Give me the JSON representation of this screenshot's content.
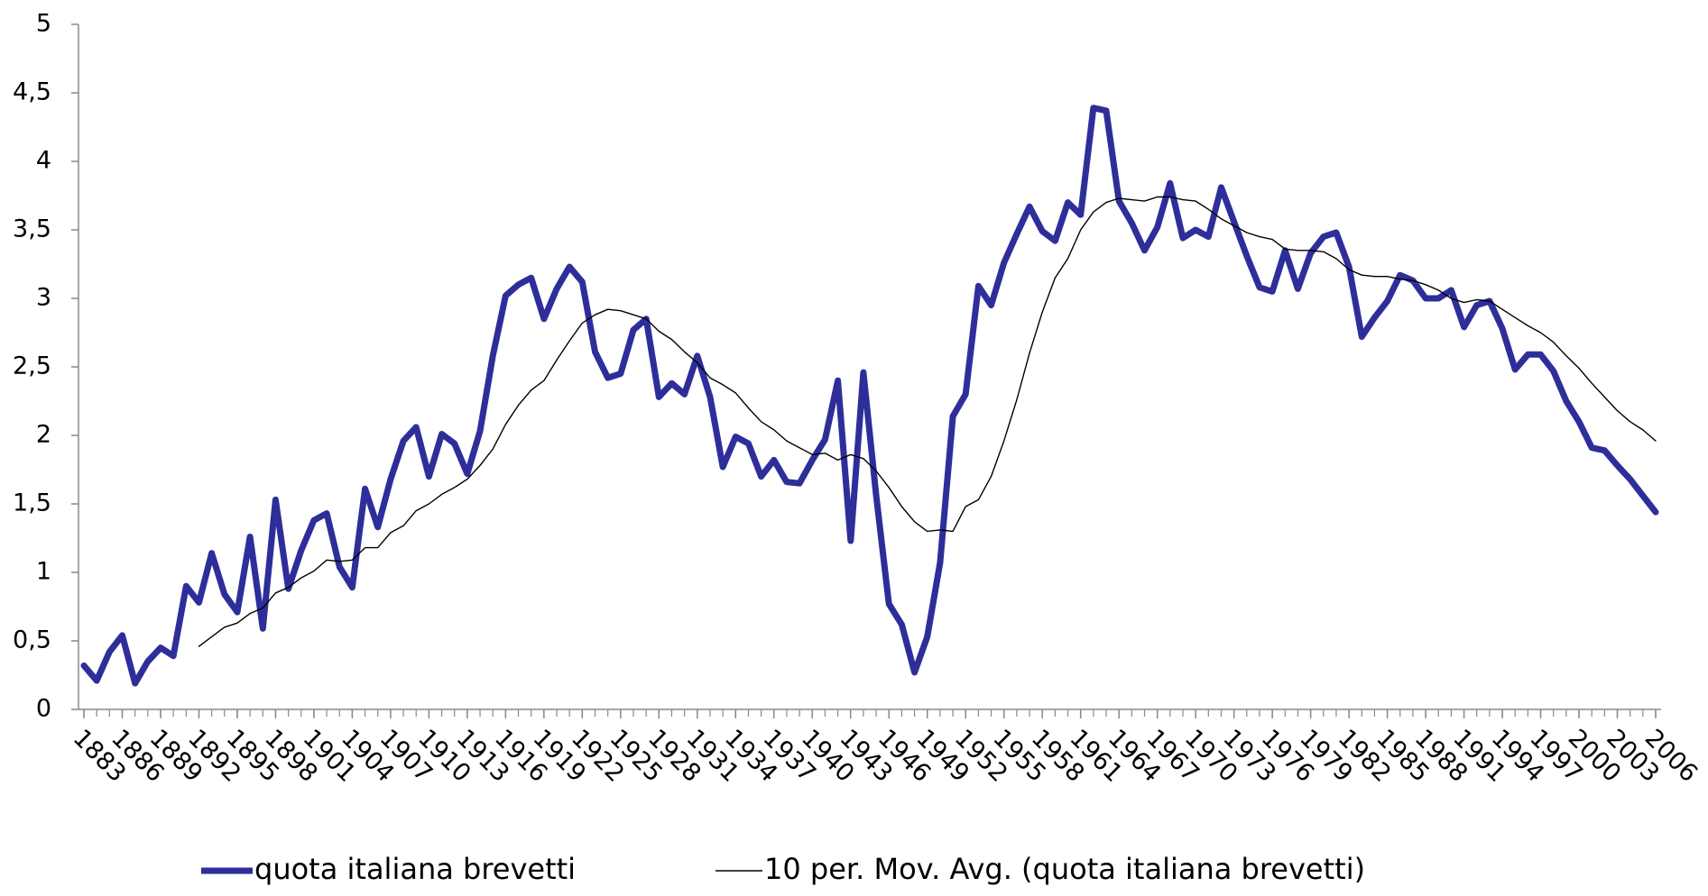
{
  "chart_data": {
    "type": "line",
    "x": [
      1883,
      1884,
      1885,
      1886,
      1887,
      1888,
      1889,
      1890,
      1891,
      1892,
      1893,
      1894,
      1895,
      1896,
      1897,
      1898,
      1899,
      1900,
      1901,
      1902,
      1903,
      1904,
      1905,
      1906,
      1907,
      1908,
      1909,
      1910,
      1911,
      1912,
      1913,
      1914,
      1915,
      1916,
      1917,
      1918,
      1919,
      1920,
      1921,
      1922,
      1923,
      1924,
      1925,
      1926,
      1927,
      1928,
      1929,
      1930,
      1931,
      1932,
      1933,
      1934,
      1935,
      1936,
      1937,
      1938,
      1939,
      1940,
      1941,
      1942,
      1943,
      1944,
      1945,
      1946,
      1947,
      1948,
      1949,
      1950,
      1951,
      1952,
      1953,
      1954,
      1955,
      1956,
      1957,
      1958,
      1959,
      1960,
      1961,
      1962,
      1963,
      1964,
      1965,
      1966,
      1967,
      1968,
      1969,
      1970,
      1971,
      1972,
      1973,
      1974,
      1975,
      1976,
      1977,
      1978,
      1979,
      1980,
      1981,
      1982,
      1983,
      1984,
      1985,
      1986,
      1987,
      1988,
      1989,
      1990,
      1991,
      1992,
      1993,
      1994,
      1995,
      1996,
      1997,
      1998,
      1999,
      2000,
      2001,
      2002,
      2003,
      2004,
      2005,
      2006
    ],
    "series": [
      {
        "name": "quota italiana brevetti",
        "color": "#2e2e9a",
        "width": 7,
        "values": [
          0.32,
          0.21,
          0.42,
          0.54,
          0.19,
          0.35,
          0.45,
          0.39,
          0.9,
          0.78,
          1.14,
          0.84,
          0.71,
          1.26,
          0.59,
          1.53,
          0.88,
          1.16,
          1.38,
          1.43,
          1.04,
          0.89,
          1.61,
          1.33,
          1.68,
          1.96,
          2.06,
          1.7,
          2.01,
          1.94,
          1.72,
          2.03,
          2.58,
          3.02,
          3.1,
          3.15,
          2.85,
          3.07,
          3.23,
          3.12,
          2.61,
          2.42,
          2.45,
          2.77,
          2.85,
          2.28,
          2.38,
          2.3,
          2.58,
          2.28,
          1.77,
          1.99,
          1.94,
          1.7,
          1.82,
          1.66,
          1.65,
          1.82,
          1.97,
          2.4,
          1.23,
          2.46,
          1.56,
          0.77,
          0.62,
          0.27,
          0.53,
          1.07,
          2.14,
          2.3,
          3.09,
          2.95,
          3.26,
          3.47,
          3.67,
          3.49,
          3.42,
          3.7,
          3.61,
          4.39,
          4.37,
          3.71,
          3.55,
          3.35,
          3.52,
          3.84,
          3.44,
          3.5,
          3.45,
          3.81,
          3.56,
          3.31,
          3.08,
          3.05,
          3.35,
          3.07,
          3.33,
          3.45,
          3.48,
          3.23,
          2.72,
          2.86,
          2.98,
          3.17,
          3.13,
          3.0,
          3.0,
          3.06,
          2.79,
          2.95,
          2.98,
          2.78,
          2.48,
          2.59,
          2.59,
          2.47,
          2.25,
          2.1,
          1.91,
          1.89,
          1.78,
          1.68,
          1.56,
          1.44
        ]
      },
      {
        "name": "10 per. Mov. Avg. (quota italiana brevetti)",
        "color": "#000000",
        "width": 1.4,
        "values": [
          null,
          null,
          null,
          null,
          null,
          null,
          null,
          null,
          null,
          0.46,
          0.53,
          0.6,
          0.63,
          0.7,
          0.74,
          0.85,
          0.89,
          0.96,
          1.01,
          1.09,
          1.08,
          1.09,
          1.18,
          1.18,
          1.29,
          1.34,
          1.45,
          1.5,
          1.57,
          1.62,
          1.68,
          1.78,
          1.9,
          2.08,
          2.22,
          2.33,
          2.4,
          2.55,
          2.69,
          2.82,
          2.88,
          2.92,
          2.91,
          2.88,
          2.85,
          2.76,
          2.7,
          2.61,
          2.53,
          2.42,
          2.37,
          2.31,
          2.2,
          2.1,
          2.04,
          1.96,
          1.91,
          1.86,
          1.87,
          1.82,
          1.86,
          1.83,
          1.74,
          1.62,
          1.48,
          1.37,
          1.3,
          1.31,
          1.3,
          1.48,
          1.53,
          1.7,
          1.96,
          2.26,
          2.6,
          2.9,
          3.15,
          3.29,
          3.5,
          3.63,
          3.7,
          3.73,
          3.72,
          3.71,
          3.74,
          3.74,
          3.72,
          3.71,
          3.65,
          3.58,
          3.53,
          3.48,
          3.45,
          3.43,
          3.36,
          3.35,
          3.35,
          3.34,
          3.29,
          3.21,
          3.17,
          3.16,
          3.16,
          3.14,
          3.13,
          3.1,
          3.06,
          3.0,
          2.97,
          2.99,
          2.98,
          2.92,
          2.86,
          2.8,
          2.75,
          2.68,
          2.58,
          2.49,
          2.38,
          2.28,
          2.18,
          2.1,
          2.04,
          1.96
        ]
      }
    ],
    "xlim": [
      1883,
      2006
    ],
    "xticks": [
      1883,
      1886,
      1889,
      1892,
      1895,
      1898,
      1901,
      1904,
      1907,
      1910,
      1913,
      1916,
      1919,
      1922,
      1925,
      1928,
      1931,
      1934,
      1937,
      1940,
      1943,
      1946,
      1949,
      1952,
      1955,
      1958,
      1961,
      1964,
      1967,
      1970,
      1973,
      1976,
      1979,
      1982,
      1985,
      1988,
      1991,
      1994,
      1997,
      2000,
      2003,
      2006
    ],
    "ylim": [
      0,
      5
    ],
    "yticks": [
      0,
      {
        "value": 0.5,
        "label": "0,5"
      },
      1,
      {
        "value": 1.5,
        "label": "1,5"
      },
      2,
      {
        "value": 2.5,
        "label": "2,5"
      },
      3,
      {
        "value": 3.5,
        "label": "3,5"
      },
      4,
      {
        "value": 4.5,
        "label": "4,5"
      },
      5
    ],
    "grid": false,
    "legend": "bottom"
  }
}
